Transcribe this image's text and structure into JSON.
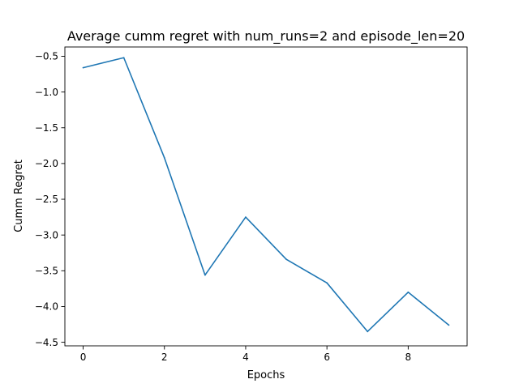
{
  "chart_data": {
    "type": "line",
    "title": "Average cumm regret with num_runs=2 and episode_len=20",
    "xlabel": "Epochs",
    "ylabel": "Cumm Regret",
    "x": [
      0,
      1,
      2,
      3,
      4,
      5,
      6,
      7,
      8,
      9
    ],
    "series": [
      {
        "values": [
          -0.66,
          -0.52,
          -1.92,
          -3.56,
          -2.75,
          -3.34,
          -3.67,
          -4.35,
          -3.8,
          -4.26
        ]
      }
    ],
    "xlim": [
      -0.45,
      9.45
    ],
    "ylim": [
      -4.55,
      -0.37
    ],
    "xticks": [
      0,
      2,
      4,
      6,
      8
    ],
    "xtick_labels": [
      "0",
      "2",
      "4",
      "6",
      "8"
    ],
    "yticks": [
      -0.5,
      -1.0,
      -1.5,
      -2.0,
      -2.5,
      -3.0,
      -3.5,
      -4.0,
      -4.5
    ],
    "ytick_labels": [
      "−0.5",
      "−1.0",
      "−1.5",
      "−2.0",
      "−2.5",
      "−3.0",
      "−3.5",
      "−4.0",
      "−4.5"
    ],
    "line_color": "#1f77b4",
    "grid": false,
    "legend": false
  }
}
